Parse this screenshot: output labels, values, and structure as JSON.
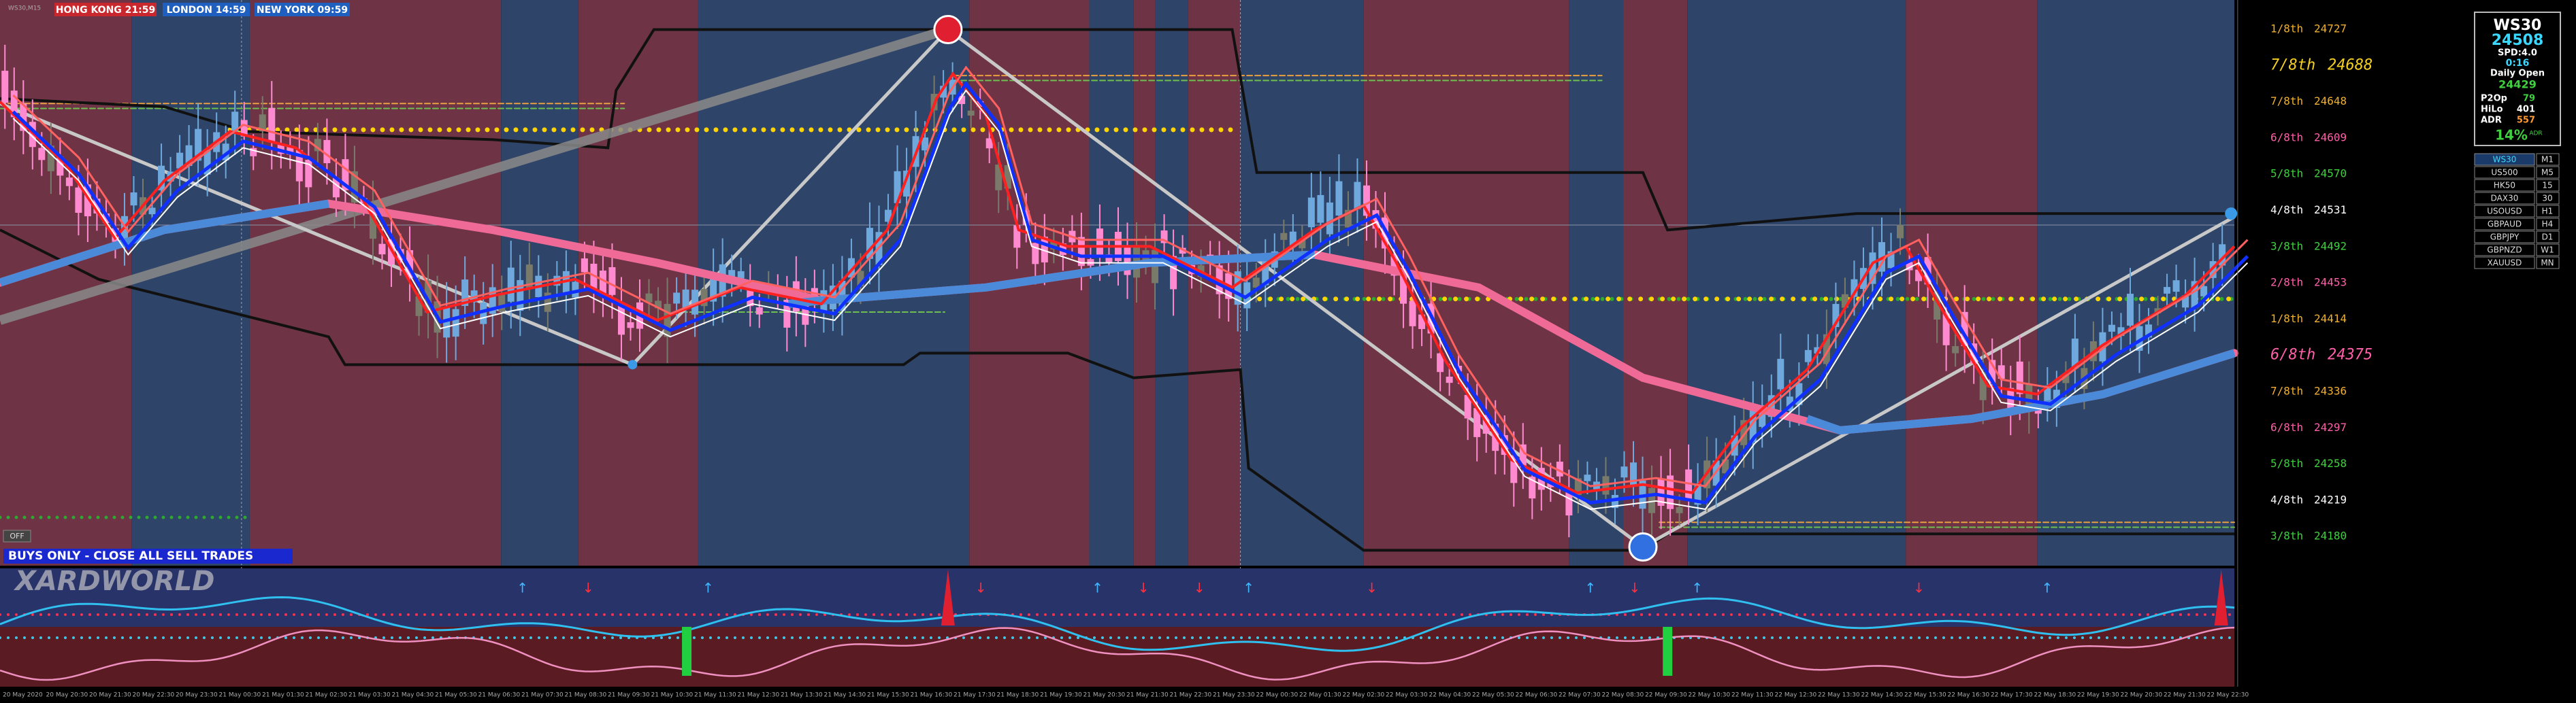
{
  "header": {
    "symbol": "WS30,M15",
    "clocks": [
      {
        "city": "HONG KONG",
        "time": "21:59",
        "color": "#c8282d"
      },
      {
        "city": "LONDON",
        "time": "14:59",
        "color": "#1f5fbf"
      },
      {
        "city": "NEW YORK",
        "time": "09:59",
        "color": "#1f5fbf"
      }
    ]
  },
  "banner": "BUYS ONLY - CLOSE ALL SELL TRADES",
  "logo": "XARDWORLD",
  "off_button": "OFF",
  "levels": [
    {
      "label": "1/8th",
      "price": 24727,
      "color": "#f0b030",
      "emphasis": false
    },
    {
      "label": "7/8th",
      "price": 24688,
      "color": "#f5d020",
      "emphasis": true
    },
    {
      "label": "7/8th",
      "price": 24648,
      "color": "#f0b030",
      "emphasis": false
    },
    {
      "label": "6/8th",
      "price": 24609,
      "color": "#ff5fa8",
      "emphasis": false
    },
    {
      "label": "5/8th",
      "price": 24570,
      "color": "#3fd03f",
      "emphasis": false
    },
    {
      "label": "4/8th",
      "price": 24531,
      "color": "#ffffff",
      "emphasis": false
    },
    {
      "label": "3/8th",
      "price": 24492,
      "color": "#3fd03f",
      "emphasis": false
    },
    {
      "label": "2/8th",
      "price": 24453,
      "color": "#ff5fa8",
      "emphasis": false
    },
    {
      "label": "1/8th",
      "price": 24414,
      "color": "#f0b030",
      "emphasis": false
    },
    {
      "label": "6/8th",
      "price": 24375,
      "color": "#ff5fa8",
      "emphasis": true
    },
    {
      "label": "7/8th",
      "price": 24336,
      "color": "#f0b030",
      "emphasis": false
    },
    {
      "label": "6/8th",
      "price": 24297,
      "color": "#ff5fa8",
      "emphasis": false
    },
    {
      "label": "5/8th",
      "price": 24258,
      "color": "#3fd03f",
      "emphasis": false
    },
    {
      "label": "4/8th",
      "price": 24219,
      "color": "#ffffff",
      "emphasis": false
    },
    {
      "label": "3/8th",
      "price": 24180,
      "color": "#3fd03f",
      "emphasis": false
    }
  ],
  "info_panel": {
    "symbol": "WS30",
    "price": 24508,
    "spread": "SPD:4.0",
    "timer": "0:16",
    "daily_open_label": "Daily Open",
    "daily_open": 24429,
    "stats": [
      {
        "label": "P2Op",
        "value": 79,
        "color": "#3fd03f"
      },
      {
        "label": "HiLo",
        "value": 401,
        "color": "#ffffff"
      },
      {
        "label": "ADR",
        "value": 557,
        "color": "#ff9a30"
      }
    ],
    "adr_pct": "14%",
    "adr_label": "ADR"
  },
  "symbols": [
    {
      "symbol": "WS30",
      "timeframe": "M1"
    },
    {
      "symbol": "US500",
      "timeframe": "M5"
    },
    {
      "symbol": "HK50",
      "timeframe": "15"
    },
    {
      "symbol": "DAX30",
      "timeframe": "30"
    },
    {
      "symbol": "USOUSD",
      "timeframe": "H1"
    },
    {
      "symbol": "GBPAUD",
      "timeframe": "H4"
    },
    {
      "symbol": "GBPJPY",
      "timeframe": "D1"
    },
    {
      "symbol": "GBPNZD",
      "timeframe": "W1"
    },
    {
      "symbol": "XAUUSD",
      "timeframe": "MN"
    }
  ],
  "time_axis": [
    "20 May 2020",
    "20 May 20:30",
    "20 May 21:30",
    "20 May 22:30",
    "20 May 23:30",
    "21 May 00:30",
    "21 May 01:30",
    "21 May 02:30",
    "21 May 03:30",
    "21 May 04:30",
    "21 May 05:30",
    "21 May 06:30",
    "21 May 07:30",
    "21 May 08:30",
    "21 May 09:30",
    "21 May 10:30",
    "21 May 11:30",
    "21 May 12:30",
    "21 May 13:30",
    "21 May 14:30",
    "21 May 15:30",
    "21 May 16:30",
    "21 May 17:30",
    "21 May 18:30",
    "21 May 19:30",
    "21 May 20:30",
    "21 May 21:30",
    "21 May 22:30",
    "21 May 23:30",
    "22 May 00:30",
    "22 May 01:30",
    "22 May 02:30",
    "22 May 03:30",
    "22 May 04:30",
    "22 May 05:30",
    "22 May 06:30",
    "22 May 07:30",
    "22 May 08:30",
    "22 May 09:30",
    "22 May 10:30",
    "22 May 11:30",
    "22 May 12:30",
    "22 May 13:30",
    "22 May 14:30",
    "22 May 15:30",
    "22 May 16:30",
    "22 May 17:30",
    "22 May 18:30",
    "22 May 19:30",
    "22 May 20:30",
    "22 May 21:30",
    "22 May 22:30"
  ]
}
